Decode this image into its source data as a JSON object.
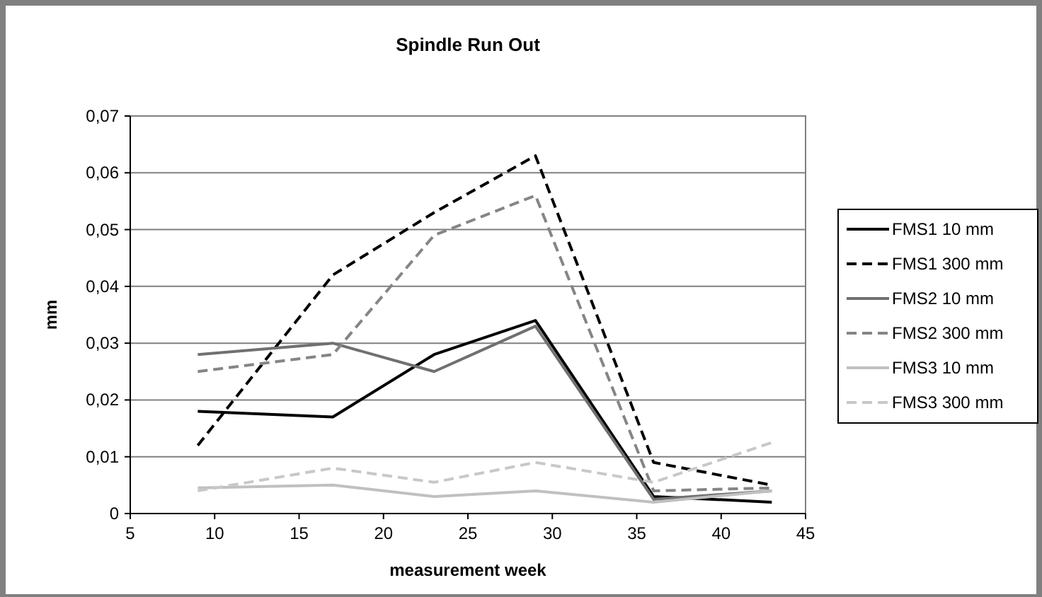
{
  "chart_data": {
    "type": "line",
    "title": "Spindle Run Out",
    "xlabel": "measurement week",
    "ylabel": "mm",
    "x": [
      9,
      17,
      23,
      29,
      36,
      43
    ],
    "series": [
      {
        "name": "FMS1 10 mm",
        "color": "#000000",
        "line_style": "solid",
        "values": [
          0.018,
          0.017,
          0.028,
          0.034,
          0.003,
          0.002
        ]
      },
      {
        "name": "FMS1 300 mm",
        "color": "#000000",
        "line_style": "dashed",
        "values": [
          0.012,
          0.042,
          0.053,
          0.063,
          0.009,
          0.005
        ]
      },
      {
        "name": "FMS2 10 mm",
        "color": "#707070",
        "line_style": "solid",
        "values": [
          0.028,
          0.03,
          0.025,
          0.033,
          0.0025,
          0.004
        ]
      },
      {
        "name": "FMS2 300 mm",
        "color": "#858585",
        "line_style": "dashed",
        "values": [
          0.025,
          0.028,
          0.049,
          0.056,
          0.004,
          0.0045
        ]
      },
      {
        "name": "FMS3 10 mm",
        "color": "#c0c0c0",
        "line_style": "solid",
        "values": [
          0.0045,
          0.005,
          0.003,
          0.004,
          0.002,
          0.004
        ]
      },
      {
        "name": "FMS3 300 mm",
        "color": "#c8c8c8",
        "line_style": "dashed",
        "values": [
          0.004,
          0.008,
          0.0055,
          0.009,
          0.0055,
          0.0125
        ]
      }
    ],
    "xlim": [
      5,
      45
    ],
    "xticks": [
      5,
      10,
      15,
      20,
      25,
      30,
      35,
      40,
      45
    ],
    "ylim": [
      0,
      0.07
    ],
    "yticks": [
      {
        "value": 0,
        "label": "0"
      },
      {
        "value": 0.01,
        "label": "0,01"
      },
      {
        "value": 0.02,
        "label": "0,02"
      },
      {
        "value": 0.03,
        "label": "0,03"
      },
      {
        "value": 0.04,
        "label": "0,04"
      },
      {
        "value": 0.05,
        "label": "0,05"
      },
      {
        "value": 0.06,
        "label": "0,06"
      },
      {
        "value": 0.07,
        "label": "0,07"
      }
    ],
    "grid": "y",
    "legend": "right",
    "marker": "none"
  }
}
